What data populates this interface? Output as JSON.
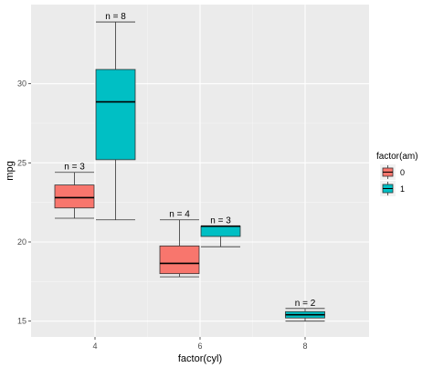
{
  "chart_data": {
    "type": "boxplot",
    "xlabel": "factor(cyl)",
    "ylabel": "mpg",
    "categories": [
      "4",
      "6",
      "8"
    ],
    "ylim": [
      14.0,
      35.0
    ],
    "yticks": [
      15,
      20,
      25,
      30
    ],
    "grid": true,
    "legend": {
      "title": "factor(am)",
      "placement": "right",
      "entries": [
        {
          "label": "0",
          "color": "#F8766D"
        },
        {
          "label": "1",
          "color": "#00BFC4"
        }
      ]
    },
    "boxes": [
      {
        "category": "4",
        "group": "0",
        "whisker_low": 21.5,
        "q1": 22.15,
        "median": 22.8,
        "q3": 23.6,
        "whisker_high": 24.4,
        "n_label": "n = 3"
      },
      {
        "category": "4",
        "group": "1",
        "whisker_low": 21.4,
        "q1": 25.2,
        "median": 28.85,
        "q3": 30.9,
        "whisker_high": 33.9,
        "n_label": "n = 8"
      },
      {
        "category": "6",
        "group": "0",
        "whisker_low": 17.8,
        "q1": 18.0,
        "median": 18.65,
        "q3": 19.75,
        "whisker_high": 21.4,
        "n_label": "n = 4"
      },
      {
        "category": "6",
        "group": "1",
        "whisker_low": 19.7,
        "q1": 20.35,
        "median": 21.0,
        "q3": 21.0,
        "whisker_high": 21.0,
        "n_label": "n = 3"
      },
      {
        "category": "8",
        "group": "1",
        "whisker_low": 15.0,
        "q1": 15.2,
        "median": 15.4,
        "q3": 15.6,
        "whisker_high": 15.8,
        "n_label": "n = 2"
      }
    ]
  },
  "colors": {
    "panel": "#EBEBEB",
    "grid_major": "#FFFFFF",
    "grid_minor": "#F5F5F5",
    "box_outline": "#333333"
  }
}
